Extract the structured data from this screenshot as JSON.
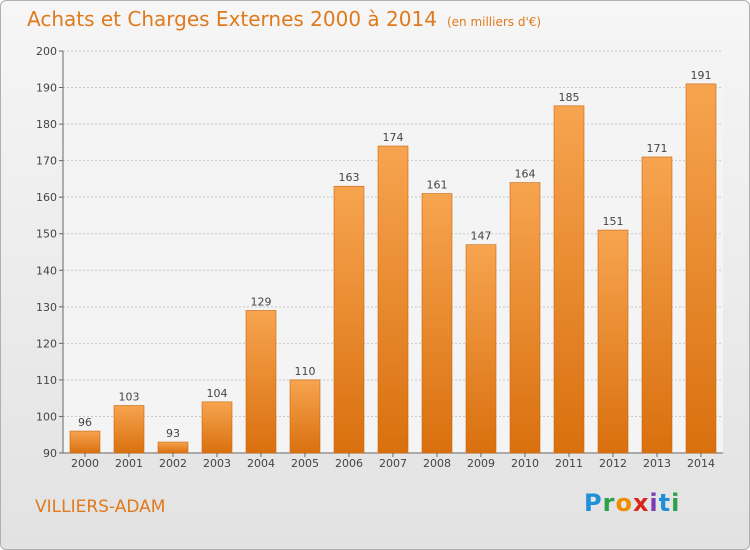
{
  "header": {
    "title": "Achats et Charges Externes 2000 à 2014",
    "unit": "(en milliers d'€)"
  },
  "footer": {
    "city": "VILLIERS-ADAM",
    "logo": "Proxiti"
  },
  "colors": {
    "accent": "#e07a1c",
    "bar_light": "#f7a450",
    "bar_dark": "#d9700e"
  },
  "chart_data": {
    "type": "bar",
    "title": "Achats et Charges Externes 2000 à 2014",
    "subtitle": "(en milliers d'€)",
    "categories": [
      "2000",
      "2001",
      "2002",
      "2003",
      "2004",
      "2005",
      "2006",
      "2007",
      "2008",
      "2009",
      "2010",
      "2011",
      "2012",
      "2013",
      "2014"
    ],
    "values": [
      96,
      103,
      93,
      104,
      129,
      110,
      163,
      174,
      161,
      147,
      164,
      185,
      151,
      171,
      191
    ],
    "ylim": [
      90,
      200
    ],
    "yticks": [
      90,
      100,
      110,
      120,
      130,
      140,
      150,
      160,
      170,
      180,
      190,
      200
    ],
    "grid": true,
    "data_labels": true
  }
}
